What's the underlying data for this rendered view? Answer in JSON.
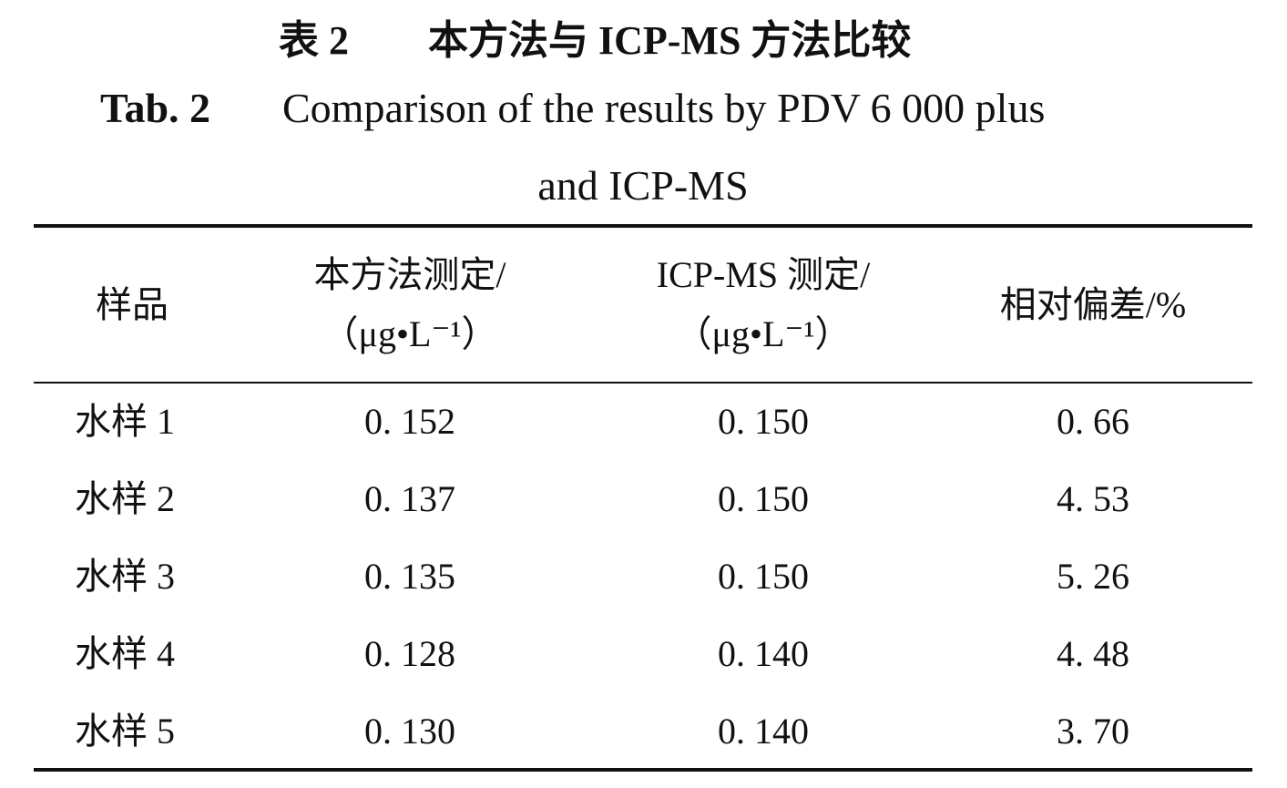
{
  "caption": {
    "cn_label": "表 2",
    "cn_title": "本方法与 ICP-MS 方法比较",
    "en_label": "Tab. 2",
    "en_lines": [
      "Comparison of the results by PDV 6 000 plus",
      "and ICP-MS"
    ]
  },
  "table": {
    "headers": [
      [
        "样品"
      ],
      [
        "本方法测定/",
        "（μg•L⁻¹）"
      ],
      [
        "ICP-MS 测定/",
        "（μg•L⁻¹）"
      ],
      [
        "相对偏差/%"
      ]
    ],
    "rows": [
      [
        "水样 1",
        "0. 152",
        "0. 150",
        "0. 66"
      ],
      [
        "水样 2",
        "0. 137",
        "0. 150",
        "4. 53"
      ],
      [
        "水样 3",
        "0. 135",
        "0. 150",
        "5. 26"
      ],
      [
        "水样 4",
        "0. 128",
        "0. 140",
        "4. 48"
      ],
      [
        "水样 5",
        "0. 130",
        "0. 140",
        "3. 70"
      ]
    ]
  }
}
